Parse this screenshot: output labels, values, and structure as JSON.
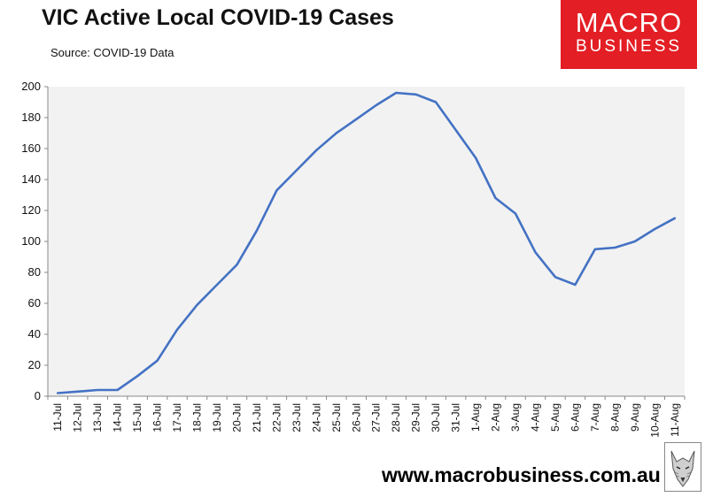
{
  "header": {
    "title": "VIC Active Local COVID-19 Cases",
    "source": "Source: COVID-19 Data"
  },
  "logo": {
    "line1": "MACRO",
    "line2": "BUSINESS",
    "color": "#e31e24"
  },
  "footer": {
    "url": "www.macrobusiness.com.au"
  },
  "chart_data": {
    "type": "line",
    "title": "VIC Active Local COVID-19 Cases",
    "categories": [
      "11-Jul",
      "12-Jul",
      "13-Jul",
      "14-Jul",
      "15-Jul",
      "16-Jul",
      "17-Jul",
      "18-Jul",
      "19-Jul",
      "20-Jul",
      "21-Jul",
      "22-Jul",
      "23-Jul",
      "24-Jul",
      "25-Jul",
      "26-Jul",
      "27-Jul",
      "28-Jul",
      "29-Jul",
      "30-Jul",
      "31-Jul",
      "1-Aug",
      "2-Aug",
      "3-Aug",
      "4-Aug",
      "5-Aug",
      "6-Aug",
      "7-Aug",
      "8-Aug",
      "9-Aug",
      "10-Aug",
      "11-Aug"
    ],
    "series": [
      {
        "values": [
          2,
          3,
          4,
          4,
          13,
          23,
          43,
          59,
          72,
          85,
          107,
          133,
          146,
          159,
          170,
          179,
          188,
          196,
          195,
          190,
          172,
          154,
          128,
          118,
          93,
          77,
          72,
          95,
          96,
          100,
          108,
          115
        ],
        "color": "#4472c4"
      }
    ],
    "ylim": [
      0,
      200
    ],
    "yticks": [
      0,
      20,
      40,
      60,
      80,
      100,
      120,
      140,
      160,
      180,
      200
    ],
    "grid": false,
    "plot_background": "#f2f2f2"
  }
}
